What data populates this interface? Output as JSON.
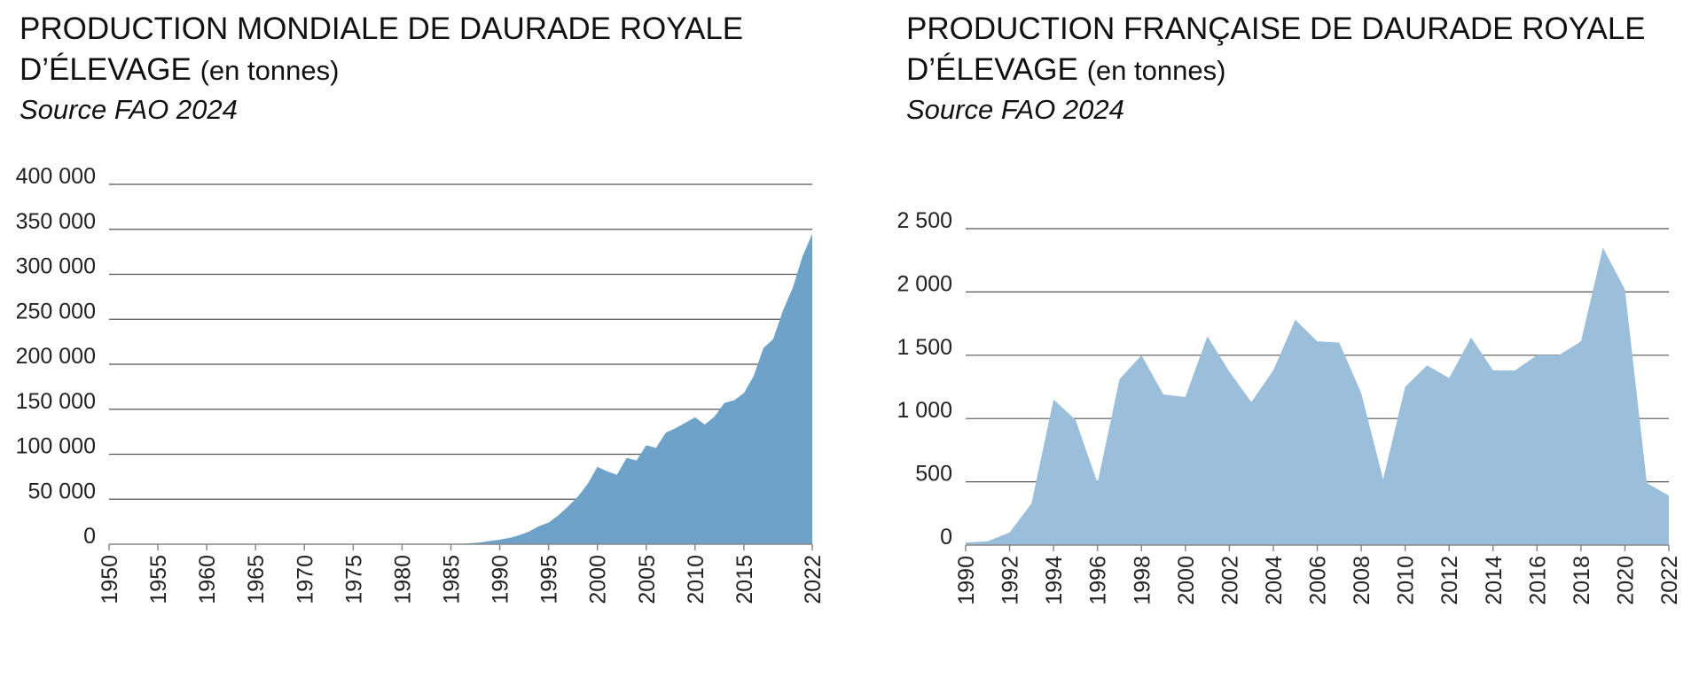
{
  "charts": [
    {
      "title_main_line1": "PRODUCTION MONDIALE DE DAURADE ROYALE",
      "title_main_line2": "D’ÉLEVAGE",
      "title_unit": "(en tonnes)",
      "source": "Source FAO 2024"
    },
    {
      "title_main_line1": "PRODUCTION FRANÇAISE DE DAURADE ROYALE",
      "title_main_line2": "D’ÉLEVAGE",
      "title_unit": "(en tonnes)",
      "source": "Source FAO 2024"
    }
  ],
  "colors": {
    "world_fill": "#6fa2c8",
    "france_fill": "#9bbfda",
    "grid": "#555555"
  },
  "chart_data": [
    {
      "type": "area",
      "title": "PRODUCTION MONDIALE DE DAURADE ROYALE D’ÉLEVAGE (en tonnes)",
      "subtitle": "Source FAO 2024",
      "ylim": [
        0,
        400000
      ],
      "yticks": [
        0,
        50000,
        100000,
        150000,
        200000,
        250000,
        300000,
        350000,
        400000
      ],
      "ytick_labels": [
        "0",
        "50 000",
        "100 000",
        "150 000",
        "200 000",
        "250 000",
        "300 000",
        "350 000",
        "400 000"
      ],
      "xlim": [
        1950,
        2022
      ],
      "xticks": [
        1950,
        1955,
        1960,
        1965,
        1970,
        1975,
        1980,
        1985,
        1990,
        1995,
        2000,
        2005,
        2010,
        2015,
        2022
      ],
      "xtick_labels": [
        "1950",
        "1955",
        "1960",
        "1965",
        "1970",
        "1975",
        "1980",
        "1985",
        "1990",
        "1995",
        "2000",
        "2005",
        "2010",
        "2015",
        "2022"
      ],
      "grid": true,
      "x": [
        1950,
        1984,
        1985,
        1986,
        1987,
        1988,
        1989,
        1990,
        1991,
        1992,
        1993,
        1994,
        1995,
        1996,
        1997,
        1998,
        1999,
        2000,
        2001,
        2002,
        2003,
        2004,
        2005,
        2006,
        2007,
        2008,
        2009,
        2010,
        2011,
        2012,
        2013,
        2014,
        2015,
        2016,
        2017,
        2018,
        2019,
        2020,
        2021,
        2022
      ],
      "y": [
        0,
        0,
        200,
        400,
        1000,
        2000,
        3500,
        5000,
        7000,
        10000,
        14000,
        20000,
        24000,
        32000,
        42000,
        53000,
        67000,
        86000,
        81000,
        77000,
        96000,
        93000,
        110000,
        107000,
        124000,
        129000,
        135000,
        141000,
        133000,
        142000,
        157000,
        160000,
        168000,
        187000,
        218000,
        228000,
        260000,
        285000,
        320000,
        345000
      ]
    },
    {
      "type": "area",
      "title": "PRODUCTION FRANÇAISE DE DAURADE ROYALE D’ÉLEVAGE (en tonnes)",
      "subtitle": "Source FAO 2024",
      "ylim": [
        0,
        2500
      ],
      "yticks": [
        0,
        500,
        1000,
        1500,
        2000,
        2500
      ],
      "ytick_labels": [
        "0",
        "500",
        "1 000",
        "1 500",
        "2 000",
        "2 500"
      ],
      "xlim": [
        1990,
        2022
      ],
      "xticks": [
        1990,
        1992,
        1994,
        1996,
        1998,
        2000,
        2002,
        2004,
        2006,
        2008,
        2010,
        2012,
        2014,
        2016,
        2018,
        2020,
        2022
      ],
      "xtick_labels": [
        "1990",
        "1992",
        "1994",
        "1996",
        "1998",
        "2000",
        "2002",
        "2004",
        "2006",
        "2008",
        "2010",
        "2012",
        "2014",
        "2016",
        "2018",
        "2020",
        "2022"
      ],
      "grid": true,
      "x": [
        1990,
        1991,
        1992,
        1993,
        1994,
        1995,
        1996,
        1997,
        1998,
        1999,
        2000,
        2001,
        2002,
        2003,
        2004,
        2005,
        2006,
        2007,
        2008,
        2009,
        2010,
        2011,
        2012,
        2013,
        2014,
        2015,
        2016,
        2017,
        2018,
        2019,
        2020,
        2021,
        2022
      ],
      "y": [
        20,
        30,
        100,
        330,
        1150,
        990,
        490,
        1310,
        1500,
        1190,
        1170,
        1650,
        1370,
        1130,
        1380,
        1780,
        1610,
        1600,
        1200,
        520,
        1250,
        1420,
        1320,
        1640,
        1380,
        1380,
        1500,
        1500,
        1610,
        2350,
        2020,
        490,
        390
      ]
    }
  ]
}
